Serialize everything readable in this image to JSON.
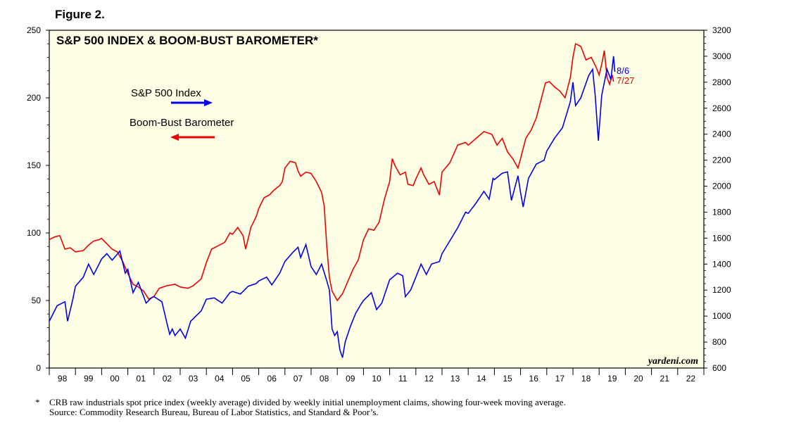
{
  "figure_label": "Figure 2.",
  "footnote": {
    "marker": "*",
    "line1": "CRB raw industrials spot price index (weekly average) divided by weekly initial unemployment claims, showing four-week moving average.",
    "line2": "Source: Commodity Research Bureau, Bureau of Labor Statistics, and Standard & Poor’s."
  },
  "colors": {
    "sp500": "#0000ee",
    "bbb": "#ee0000",
    "plot_bg": "#ffffe6"
  },
  "chart_data": {
    "type": "line",
    "title": "S&P 500 INDEX & BOOM-BUST BAROMETER*",
    "watermark": "yardeni.com",
    "x_tick_labels": [
      "98",
      "99",
      "00",
      "01",
      "02",
      "03",
      "04",
      "05",
      "06",
      "07",
      "08",
      "09",
      "10",
      "11",
      "12",
      "13",
      "14",
      "15",
      "16",
      "17",
      "18",
      "19",
      "20",
      "21",
      "22"
    ],
    "xlim": [
      1998,
      2023
    ],
    "left_axis": {
      "series": "Boom-Bust Barometer",
      "ylim": [
        0,
        250
      ],
      "ticks": [
        "0",
        "50",
        "100",
        "150",
        "200",
        "250"
      ]
    },
    "right_axis": {
      "series": "S&P 500 Index",
      "ylim": [
        600,
        3200
      ],
      "ticks": [
        "600",
        "800",
        "1000",
        "1200",
        "1400",
        "1600",
        "1800",
        "2000",
        "2200",
        "2400",
        "2600",
        "2800",
        "3000",
        "3200"
      ]
    },
    "legend": [
      {
        "label": "S&P 500 Index",
        "arrow": "right",
        "color": "#0000ee"
      },
      {
        "label": "Boom-Bust Barometer",
        "arrow": "left",
        "color": "#ee0000"
      }
    ],
    "end_labels": [
      {
        "text": "8/6",
        "color": "#0000ee"
      },
      {
        "text": "7/27",
        "color": "#ee0000"
      }
    ],
    "series": [
      {
        "name": "S&P 500 Index",
        "axis": "right",
        "color": "#0000ee",
        "points": [
          [
            1998.0,
            960
          ],
          [
            1998.3,
            1080
          ],
          [
            1998.6,
            1110
          ],
          [
            1998.7,
            960
          ],
          [
            1998.9,
            1130
          ],
          [
            1999.0,
            1230
          ],
          [
            1999.3,
            1300
          ],
          [
            1999.5,
            1400
          ],
          [
            1999.7,
            1320
          ],
          [
            1999.9,
            1400
          ],
          [
            2000.0,
            1440
          ],
          [
            2000.2,
            1480
          ],
          [
            2000.4,
            1430
          ],
          [
            2000.7,
            1500
          ],
          [
            2000.9,
            1330
          ],
          [
            2001.0,
            1360
          ],
          [
            2001.2,
            1180
          ],
          [
            2001.4,
            1260
          ],
          [
            2001.7,
            1100
          ],
          [
            2001.9,
            1140
          ],
          [
            2002.0,
            1150
          ],
          [
            2002.3,
            1110
          ],
          [
            2002.5,
            940
          ],
          [
            2002.6,
            860
          ],
          [
            2002.7,
            900
          ],
          [
            2002.8,
            850
          ],
          [
            2003.0,
            900
          ],
          [
            2003.2,
            830
          ],
          [
            2003.4,
            960
          ],
          [
            2003.6,
            1000
          ],
          [
            2003.8,
            1040
          ],
          [
            2004.0,
            1130
          ],
          [
            2004.3,
            1140
          ],
          [
            2004.6,
            1100
          ],
          [
            2004.9,
            1180
          ],
          [
            2005.0,
            1190
          ],
          [
            2005.3,
            1170
          ],
          [
            2005.6,
            1230
          ],
          [
            2005.9,
            1250
          ],
          [
            2006.0,
            1270
          ],
          [
            2006.3,
            1300
          ],
          [
            2006.5,
            1240
          ],
          [
            2006.8,
            1330
          ],
          [
            2007.0,
            1420
          ],
          [
            2007.3,
            1490
          ],
          [
            2007.5,
            1530
          ],
          [
            2007.6,
            1450
          ],
          [
            2007.8,
            1550
          ],
          [
            2008.0,
            1380
          ],
          [
            2008.2,
            1320
          ],
          [
            2008.4,
            1400
          ],
          [
            2008.6,
            1270
          ],
          [
            2008.7,
            1200
          ],
          [
            2008.8,
            900
          ],
          [
            2008.9,
            850
          ],
          [
            2009.0,
            880
          ],
          [
            2009.1,
            740
          ],
          [
            2009.2,
            680
          ],
          [
            2009.3,
            800
          ],
          [
            2009.5,
            920
          ],
          [
            2009.7,
            1020
          ],
          [
            2009.9,
            1090
          ],
          [
            2010.0,
            1120
          ],
          [
            2010.3,
            1180
          ],
          [
            2010.5,
            1050
          ],
          [
            2010.7,
            1100
          ],
          [
            2010.9,
            1220
          ],
          [
            2011.0,
            1280
          ],
          [
            2011.3,
            1330
          ],
          [
            2011.5,
            1310
          ],
          [
            2011.6,
            1150
          ],
          [
            2011.8,
            1200
          ],
          [
            2012.0,
            1300
          ],
          [
            2012.2,
            1400
          ],
          [
            2012.4,
            1320
          ],
          [
            2012.6,
            1400
          ],
          [
            2012.9,
            1420
          ],
          [
            2013.0,
            1480
          ],
          [
            2013.3,
            1580
          ],
          [
            2013.6,
            1680
          ],
          [
            2013.9,
            1800
          ],
          [
            2014.0,
            1790
          ],
          [
            2014.3,
            1870
          ],
          [
            2014.6,
            1960
          ],
          [
            2014.8,
            1900
          ],
          [
            2014.95,
            2060
          ],
          [
            2015.0,
            2050
          ],
          [
            2015.3,
            2100
          ],
          [
            2015.5,
            2110
          ],
          [
            2015.65,
            1890
          ],
          [
            2015.9,
            2080
          ],
          [
            2016.0,
            1950
          ],
          [
            2016.1,
            1840
          ],
          [
            2016.3,
            2060
          ],
          [
            2016.6,
            2170
          ],
          [
            2016.9,
            2200
          ],
          [
            2017.0,
            2270
          ],
          [
            2017.3,
            2370
          ],
          [
            2017.6,
            2450
          ],
          [
            2017.9,
            2650
          ],
          [
            2018.0,
            2800
          ],
          [
            2018.1,
            2620
          ],
          [
            2018.3,
            2680
          ],
          [
            2018.6,
            2850
          ],
          [
            2018.75,
            2900
          ],
          [
            2018.85,
            2700
          ],
          [
            2018.97,
            2350
          ],
          [
            2019.1,
            2700
          ],
          [
            2019.3,
            2900
          ],
          [
            2019.45,
            2820
          ],
          [
            2019.55,
            3000
          ],
          [
            2019.6,
            2880
          ]
        ]
      },
      {
        "name": "Boom-Bust Barometer",
        "axis": "left",
        "color": "#ee0000",
        "points": [
          [
            1998.0,
            95
          ],
          [
            1998.2,
            97
          ],
          [
            1998.4,
            98
          ],
          [
            1998.6,
            88
          ],
          [
            1998.8,
            89
          ],
          [
            1999.0,
            86
          ],
          [
            1999.3,
            87
          ],
          [
            1999.5,
            91
          ],
          [
            1999.7,
            94
          ],
          [
            1999.9,
            95
          ],
          [
            2000.0,
            96
          ],
          [
            2000.2,
            92
          ],
          [
            2000.4,
            88
          ],
          [
            2000.6,
            86
          ],
          [
            2000.8,
            79
          ],
          [
            2001.0,
            70
          ],
          [
            2001.2,
            62
          ],
          [
            2001.4,
            60
          ],
          [
            2001.6,
            57
          ],
          [
            2001.8,
            51
          ],
          [
            2002.0,
            53
          ],
          [
            2002.2,
            59
          ],
          [
            2002.5,
            61
          ],
          [
            2002.8,
            62
          ],
          [
            2003.0,
            60
          ],
          [
            2003.3,
            59
          ],
          [
            2003.5,
            61
          ],
          [
            2003.8,
            66
          ],
          [
            2004.0,
            78
          ],
          [
            2004.2,
            88
          ],
          [
            2004.4,
            90
          ],
          [
            2004.7,
            93
          ],
          [
            2004.9,
            100
          ],
          [
            2005.0,
            99
          ],
          [
            2005.2,
            104
          ],
          [
            2005.4,
            98
          ],
          [
            2005.5,
            88
          ],
          [
            2005.7,
            104
          ],
          [
            2005.9,
            112
          ],
          [
            2006.0,
            118
          ],
          [
            2006.2,
            126
          ],
          [
            2006.4,
            128
          ],
          [
            2006.6,
            132
          ],
          [
            2006.8,
            135
          ],
          [
            2006.9,
            138
          ],
          [
            2007.0,
            148
          ],
          [
            2007.2,
            153
          ],
          [
            2007.4,
            152
          ],
          [
            2007.5,
            146
          ],
          [
            2007.6,
            142
          ],
          [
            2007.8,
            145
          ],
          [
            2008.0,
            144
          ],
          [
            2008.2,
            138
          ],
          [
            2008.4,
            130
          ],
          [
            2008.5,
            120
          ],
          [
            2008.6,
            90
          ],
          [
            2008.7,
            67
          ],
          [
            2008.8,
            57
          ],
          [
            2009.0,
            50
          ],
          [
            2009.2,
            55
          ],
          [
            2009.4,
            64
          ],
          [
            2009.6,
            73
          ],
          [
            2009.8,
            80
          ],
          [
            2010.0,
            95
          ],
          [
            2010.2,
            103
          ],
          [
            2010.4,
            102
          ],
          [
            2010.6,
            108
          ],
          [
            2010.8,
            125
          ],
          [
            2011.0,
            138
          ],
          [
            2011.1,
            155
          ],
          [
            2011.2,
            150
          ],
          [
            2011.4,
            143
          ],
          [
            2011.6,
            145
          ],
          [
            2011.7,
            136
          ],
          [
            2011.9,
            135
          ],
          [
            2012.0,
            140
          ],
          [
            2012.2,
            148
          ],
          [
            2012.3,
            143
          ],
          [
            2012.5,
            136
          ],
          [
            2012.7,
            138
          ],
          [
            2012.9,
            128
          ],
          [
            2013.0,
            145
          ],
          [
            2013.3,
            152
          ],
          [
            2013.6,
            165
          ],
          [
            2013.9,
            167
          ],
          [
            2014.0,
            165
          ],
          [
            2014.3,
            170
          ],
          [
            2014.6,
            175
          ],
          [
            2014.9,
            173
          ],
          [
            2015.1,
            165
          ],
          [
            2015.3,
            170
          ],
          [
            2015.5,
            160
          ],
          [
            2015.7,
            155
          ],
          [
            2015.9,
            148
          ],
          [
            2016.0,
            155
          ],
          [
            2016.2,
            170
          ],
          [
            2016.4,
            176
          ],
          [
            2016.6,
            185
          ],
          [
            2016.8,
            200
          ],
          [
            2016.95,
            211
          ],
          [
            2017.1,
            212
          ],
          [
            2017.3,
            208
          ],
          [
            2017.5,
            205
          ],
          [
            2017.7,
            200
          ],
          [
            2017.9,
            215
          ],
          [
            2018.0,
            230
          ],
          [
            2018.1,
            240
          ],
          [
            2018.3,
            238
          ],
          [
            2018.5,
            228
          ],
          [
            2018.7,
            230
          ],
          [
            2018.9,
            222
          ],
          [
            2019.0,
            217
          ],
          [
            2019.1,
            225
          ],
          [
            2019.2,
            235
          ],
          [
            2019.3,
            215
          ],
          [
            2019.4,
            210
          ],
          [
            2019.5,
            217
          ],
          [
            2019.55,
            212
          ]
        ]
      }
    ]
  }
}
